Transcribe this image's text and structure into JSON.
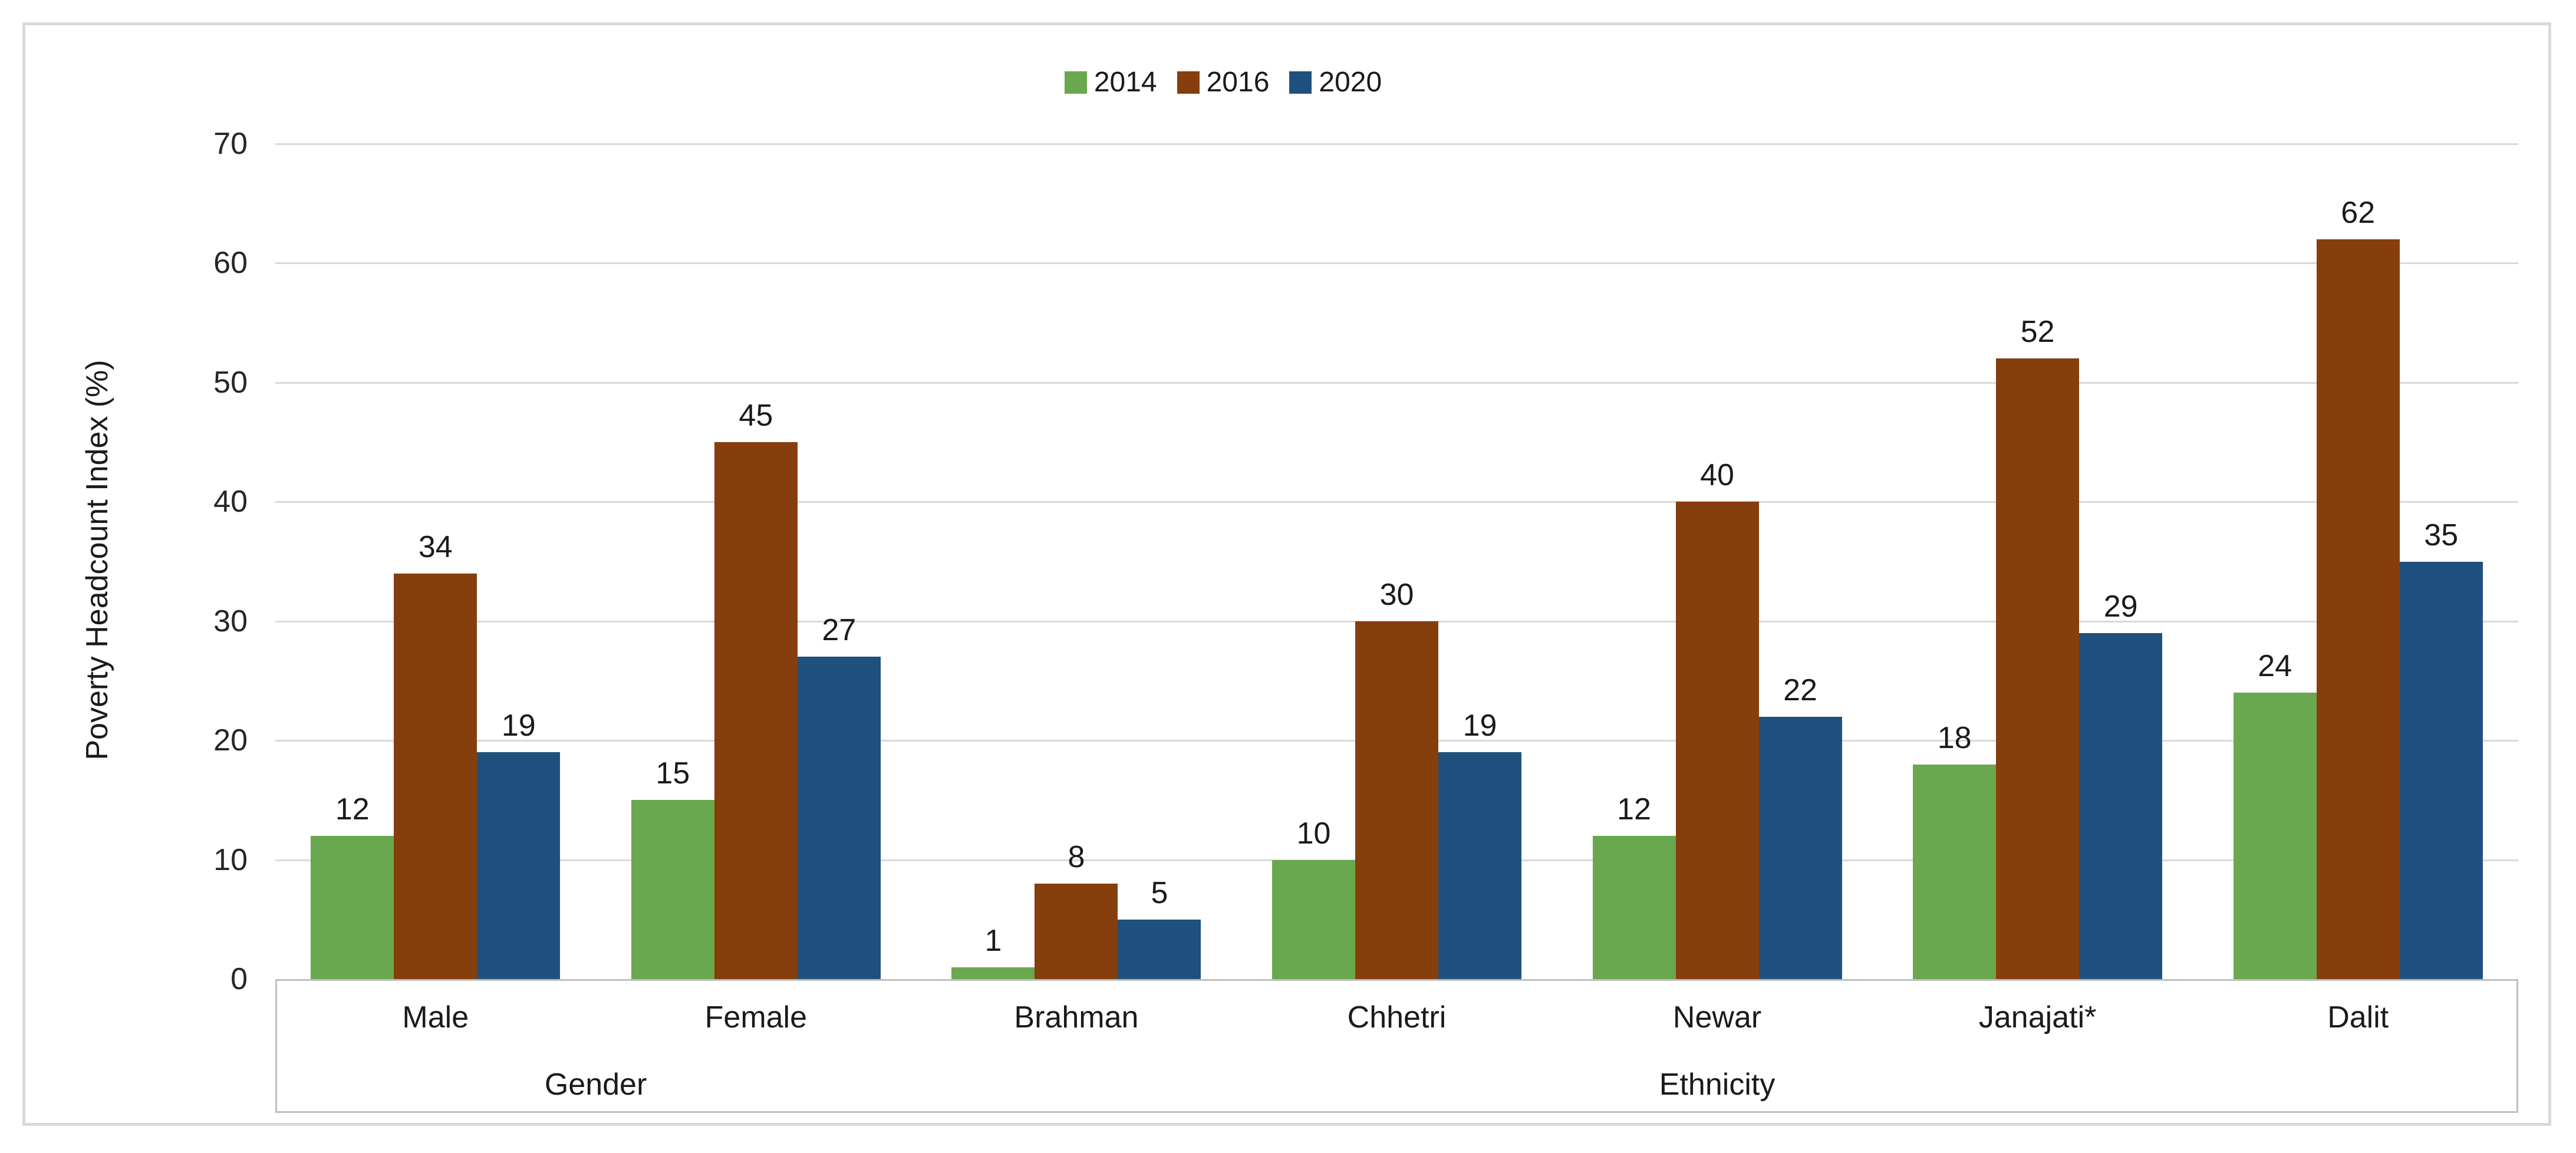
{
  "chart_data": {
    "type": "bar",
    "ylabel": "Poverty Headcount Index (%)",
    "ylim": [
      0,
      70
    ],
    "yticks": [
      0,
      10,
      20,
      30,
      40,
      50,
      60,
      70
    ],
    "grid": true,
    "legend_position": "top-center",
    "bar_value_labels": true,
    "categories": [
      "Male",
      "Female",
      "Brahman",
      "Chhetri",
      "Newar",
      "Janajati*",
      "Dalit"
    ],
    "groups": [
      {
        "label": "Gender",
        "categories": [
          "Male",
          "Female"
        ]
      },
      {
        "label": "Ethnicity",
        "categories": [
          "Brahman",
          "Chhetri",
          "Newar",
          "Janajati*",
          "Dalit"
        ]
      }
    ],
    "series": [
      {
        "name": "2014",
        "color": "#6AA84F",
        "values": [
          12,
          15,
          1,
          10,
          12,
          18,
          24
        ]
      },
      {
        "name": "2016",
        "color": "#873E0D",
        "values": [
          34,
          45,
          8,
          30,
          40,
          52,
          62
        ]
      },
      {
        "name": "2020",
        "color": "#20517E",
        "values": [
          19,
          27,
          5,
          19,
          22,
          29,
          35
        ]
      }
    ],
    "colors": {
      "gridline": "#D9D9D9",
      "axis_line": "#BFBFBF",
      "figure_border": "#D9D9D9",
      "text": "#1A1A1A"
    }
  }
}
